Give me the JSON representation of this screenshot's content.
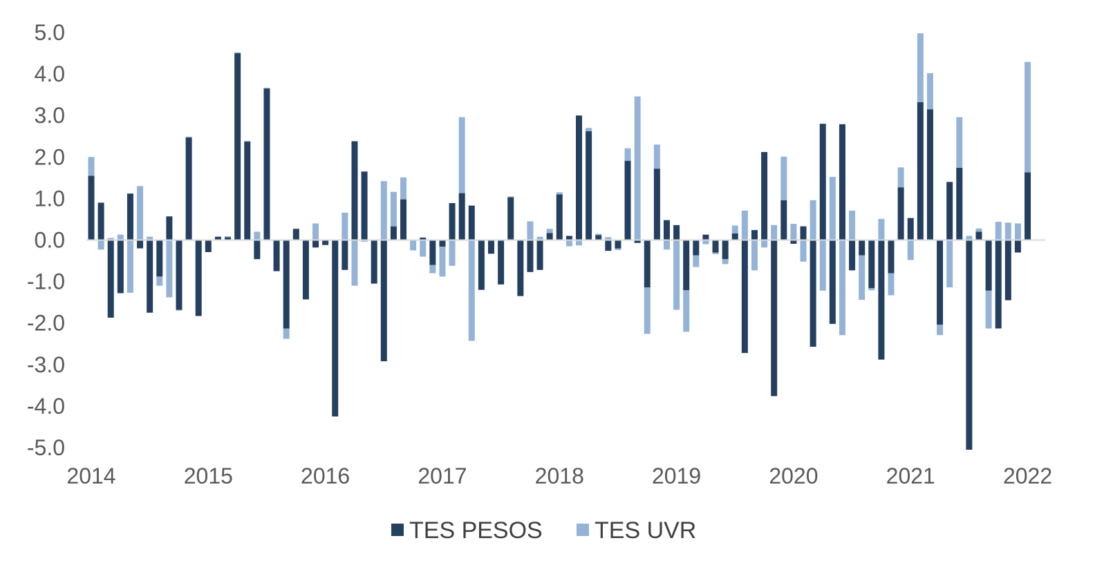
{
  "chart_data": {
    "type": "bar",
    "stacked": true,
    "title": "",
    "xlabel": "",
    "ylabel": "",
    "ylim": [
      -5.0,
      5.0
    ],
    "y_ticks": [
      "5.0",
      "4.0",
      "3.0",
      "2.0",
      "1.0",
      "0.0",
      "-1.0",
      "-2.0",
      "-3.0",
      "-4.0",
      "-5.0"
    ],
    "x_tick_labels": [
      "2014",
      "2015",
      "2016",
      "2017",
      "2018",
      "2019",
      "2020",
      "2021",
      "2022"
    ],
    "legend_position": "bottom",
    "grid": false,
    "months_per_year_label": 12,
    "series": [
      {
        "name": "TES PESOS",
        "color": "#243f60",
        "values": [
          1.55,
          0.9,
          -1.87,
          -1.28,
          1.12,
          -0.2,
          -1.75,
          -0.88,
          0.57,
          -1.68,
          2.47,
          -1.83,
          -0.29,
          0.08,
          0.07,
          4.5,
          2.37,
          -0.46,
          3.65,
          -0.75,
          -2.13,
          0.27,
          -1.43,
          -0.18,
          -0.12,
          -4.25,
          -0.72,
          2.38,
          1.65,
          -1.05,
          -2.92,
          0.33,
          0.98,
          0.0,
          0.06,
          -0.6,
          -0.16,
          0.89,
          1.13,
          0.83,
          -1.2,
          -0.33,
          -1.07,
          1.03,
          -1.35,
          -0.77,
          -0.72,
          0.17,
          1.1,
          0.1,
          3.0,
          2.62,
          0.12,
          -0.26,
          -0.2,
          1.91,
          -0.07,
          -1.14,
          1.72,
          0.48,
          0.36,
          -1.21,
          -0.37,
          0.13,
          -0.3,
          -0.46,
          0.16,
          -2.72,
          0.24,
          2.12,
          -3.76,
          0.96,
          -0.09,
          0.33,
          -2.57,
          2.8,
          -2.02,
          2.79,
          -0.73,
          -0.37,
          -1.16,
          -2.88,
          -0.8,
          1.27,
          0.53,
          3.32,
          3.15,
          -2.04,
          1.4,
          1.74,
          -5.05,
          0.2,
          -1.22,
          -2.13,
          -1.45,
          -0.3,
          1.63
        ]
      },
      {
        "name": "TES UVR",
        "color": "#95b3d7",
        "values": [
          0.45,
          -0.23,
          0.05,
          0.13,
          -1.27,
          1.3,
          0.08,
          -0.22,
          -1.38,
          -0.02,
          0.02,
          0.0,
          0.0,
          0.0,
          0.02,
          0.02,
          0.02,
          0.2,
          0.02,
          0.0,
          -0.25,
          0.0,
          0.0,
          0.4,
          0.0,
          0.0,
          0.66,
          -1.1,
          -0.04,
          0.0,
          1.42,
          0.83,
          0.53,
          -0.25,
          -0.4,
          -0.2,
          -0.72,
          -0.62,
          1.83,
          -2.43,
          0.0,
          0.0,
          0.0,
          0.02,
          0.0,
          0.45,
          0.08,
          0.1,
          0.05,
          -0.15,
          -0.13,
          0.08,
          0.03,
          0.07,
          -0.04,
          0.3,
          3.46,
          -1.12,
          0.58,
          -0.23,
          -1.68,
          -1.0,
          -0.28,
          -0.1,
          -0.04,
          -0.12,
          0.19,
          0.71,
          -0.73,
          -0.18,
          0.36,
          1.05,
          0.39,
          -0.52,
          0.96,
          -1.22,
          1.52,
          -2.29,
          0.71,
          -1.07,
          -0.05,
          0.51,
          -0.53,
          0.48,
          -0.48,
          1.66,
          0.87,
          -0.25,
          -1.14,
          1.22,
          0.1,
          0.08,
          -0.91,
          0.44,
          0.42,
          0.4,
          2.66
        ]
      }
    ]
  }
}
